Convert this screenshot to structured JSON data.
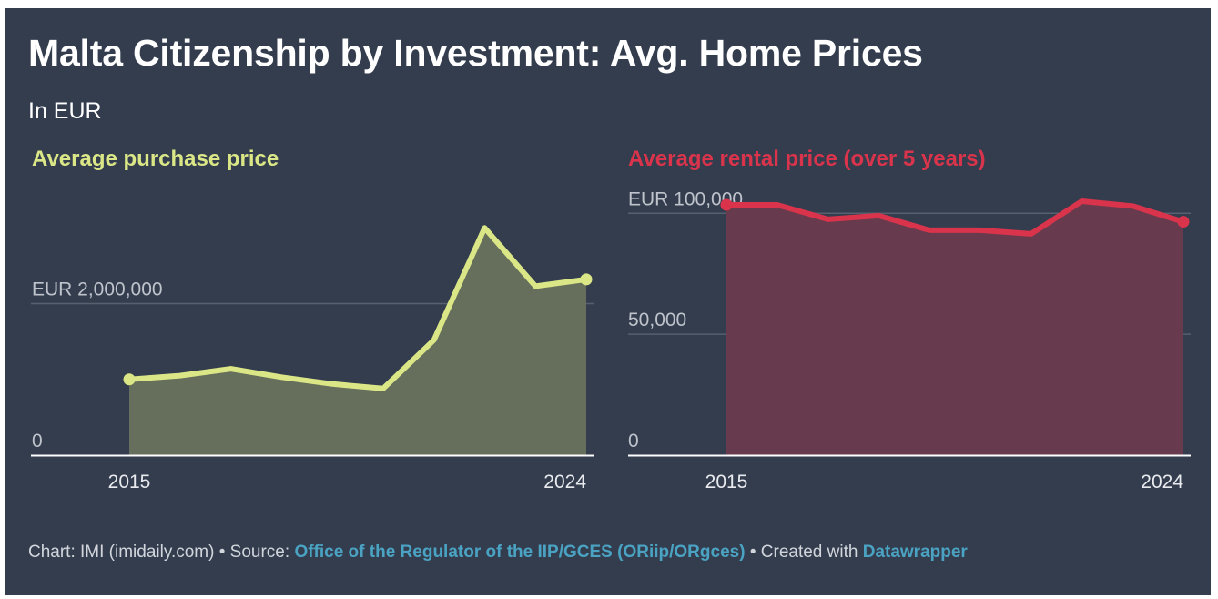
{
  "title": "Malta Citizenship by Investment: Avg. Home Prices",
  "subtitle": "In EUR",
  "footer": {
    "chart_prefix": "Chart: IMI (imidaily.com)",
    "sep1": " • ",
    "source_prefix": "Source: ",
    "source_link": "Office of the Regulator of the IIP/GCES (ORiip/ORgces)",
    "sep2": " • ",
    "created_prefix": "Created with ",
    "created_link": "Datawrapper"
  },
  "colors": {
    "background": "#333d4e",
    "purchase_line": "#dbe786",
    "purchase_area": "#656f5c",
    "rental_line": "#d9344b",
    "rental_area": "#673b4d",
    "gridline": "#56606f",
    "tick_label": "#bfc3cb",
    "axis_label": "#e8eaee",
    "link": "#4ba3c3"
  },
  "chart_data": [
    {
      "type": "area",
      "title": "Average purchase price",
      "xlabel": "",
      "ylabel": "",
      "x": [
        2015,
        2016,
        2017,
        2018,
        2019,
        2020,
        2021,
        2022,
        2023,
        2024
      ],
      "x_tick_labels": [
        "2015",
        "2024"
      ],
      "y_ticks": [
        0,
        2000000
      ],
      "y_tick_labels": [
        "0",
        "EUR 2,000,000"
      ],
      "ylim": [
        0,
        3400000
      ],
      "grid": true,
      "end_markers": true,
      "series": [
        {
          "name": "Average purchase price",
          "values": [
            1000000,
            1050000,
            1140000,
            1030000,
            940000,
            880000,
            1520000,
            3000000,
            2230000,
            2320000
          ]
        }
      ]
    },
    {
      "type": "area",
      "title": "Average rental price (over 5 years)",
      "xlabel": "",
      "ylabel": "",
      "x": [
        2015,
        2016,
        2017,
        2018,
        2019,
        2020,
        2021,
        2022,
        2023,
        2024
      ],
      "x_tick_labels": [
        "2015",
        "2024"
      ],
      "y_ticks": [
        0,
        50000,
        100000
      ],
      "y_tick_labels": [
        "0",
        "50,000",
        "EUR 100,000"
      ],
      "ylim": [
        0,
        106500
      ],
      "grid": true,
      "end_markers": true,
      "series": [
        {
          "name": "Average rental price (over 5 years)",
          "values": [
            103500,
            103500,
            97500,
            99000,
            93000,
            93000,
            91500,
            105000,
            103000,
            96500
          ]
        }
      ]
    }
  ]
}
